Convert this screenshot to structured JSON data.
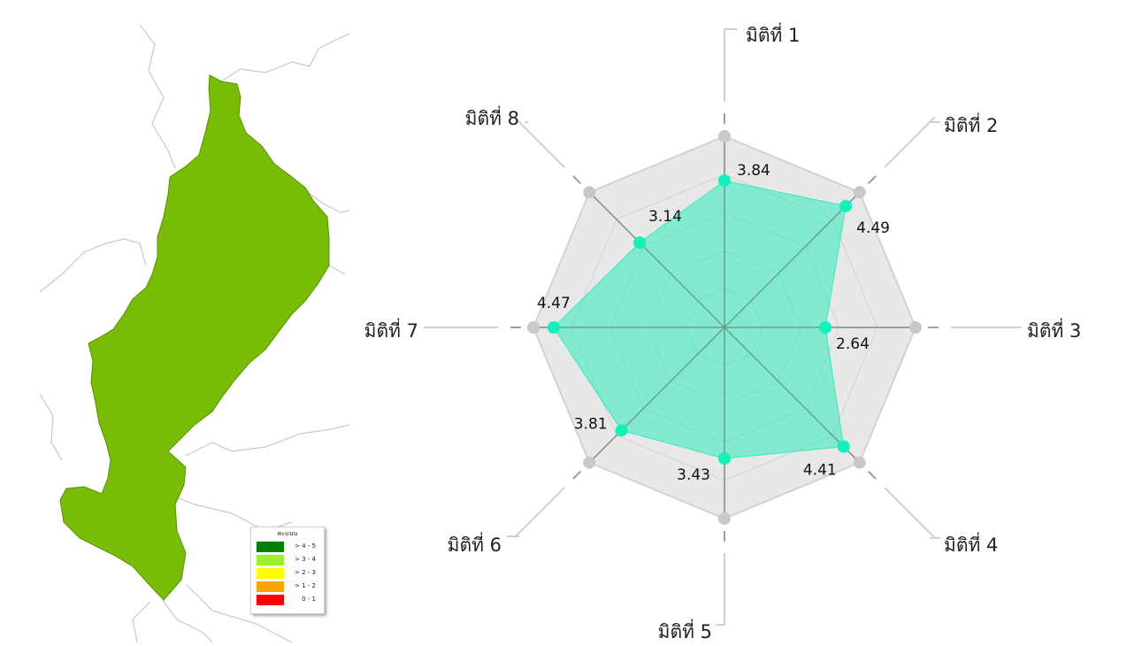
{
  "map": {
    "region_color": "#78BC06",
    "border_color": "#c8c8c8",
    "legend": {
      "title": "คะแนน",
      "items": [
        {
          "label": "> 4 - 5",
          "color": "#008000"
        },
        {
          "label": "> 3 - 4",
          "color": "#9CF02A"
        },
        {
          "label": "> 2 - 3",
          "color": "#FFFF00"
        },
        {
          "label": "> 1 - 2",
          "color": "#FFA500"
        },
        {
          "label": "0 - 1",
          "color": "#FF0000"
        }
      ]
    }
  },
  "chart_data": {
    "type": "radar",
    "categories": [
      "มิติที่ 1",
      "มิติที่ 2",
      "มิติที่ 3",
      "มิติที่ 4",
      "มิติที่ 5",
      "มิติที่ 6",
      "มิติที่ 7",
      "มิติที่ 8"
    ],
    "series": [
      {
        "values": [
          3.84,
          4.49,
          2.64,
          4.41,
          3.43,
          3.81,
          4.47,
          3.14
        ],
        "color": "#1DE9B6"
      }
    ],
    "value_labels": [
      "3.84",
      "4.49",
      "2.64",
      "4.41",
      "3.43",
      "3.81",
      "4.47",
      "3.14"
    ],
    "rmax": 5,
    "grid_rings": 5
  }
}
